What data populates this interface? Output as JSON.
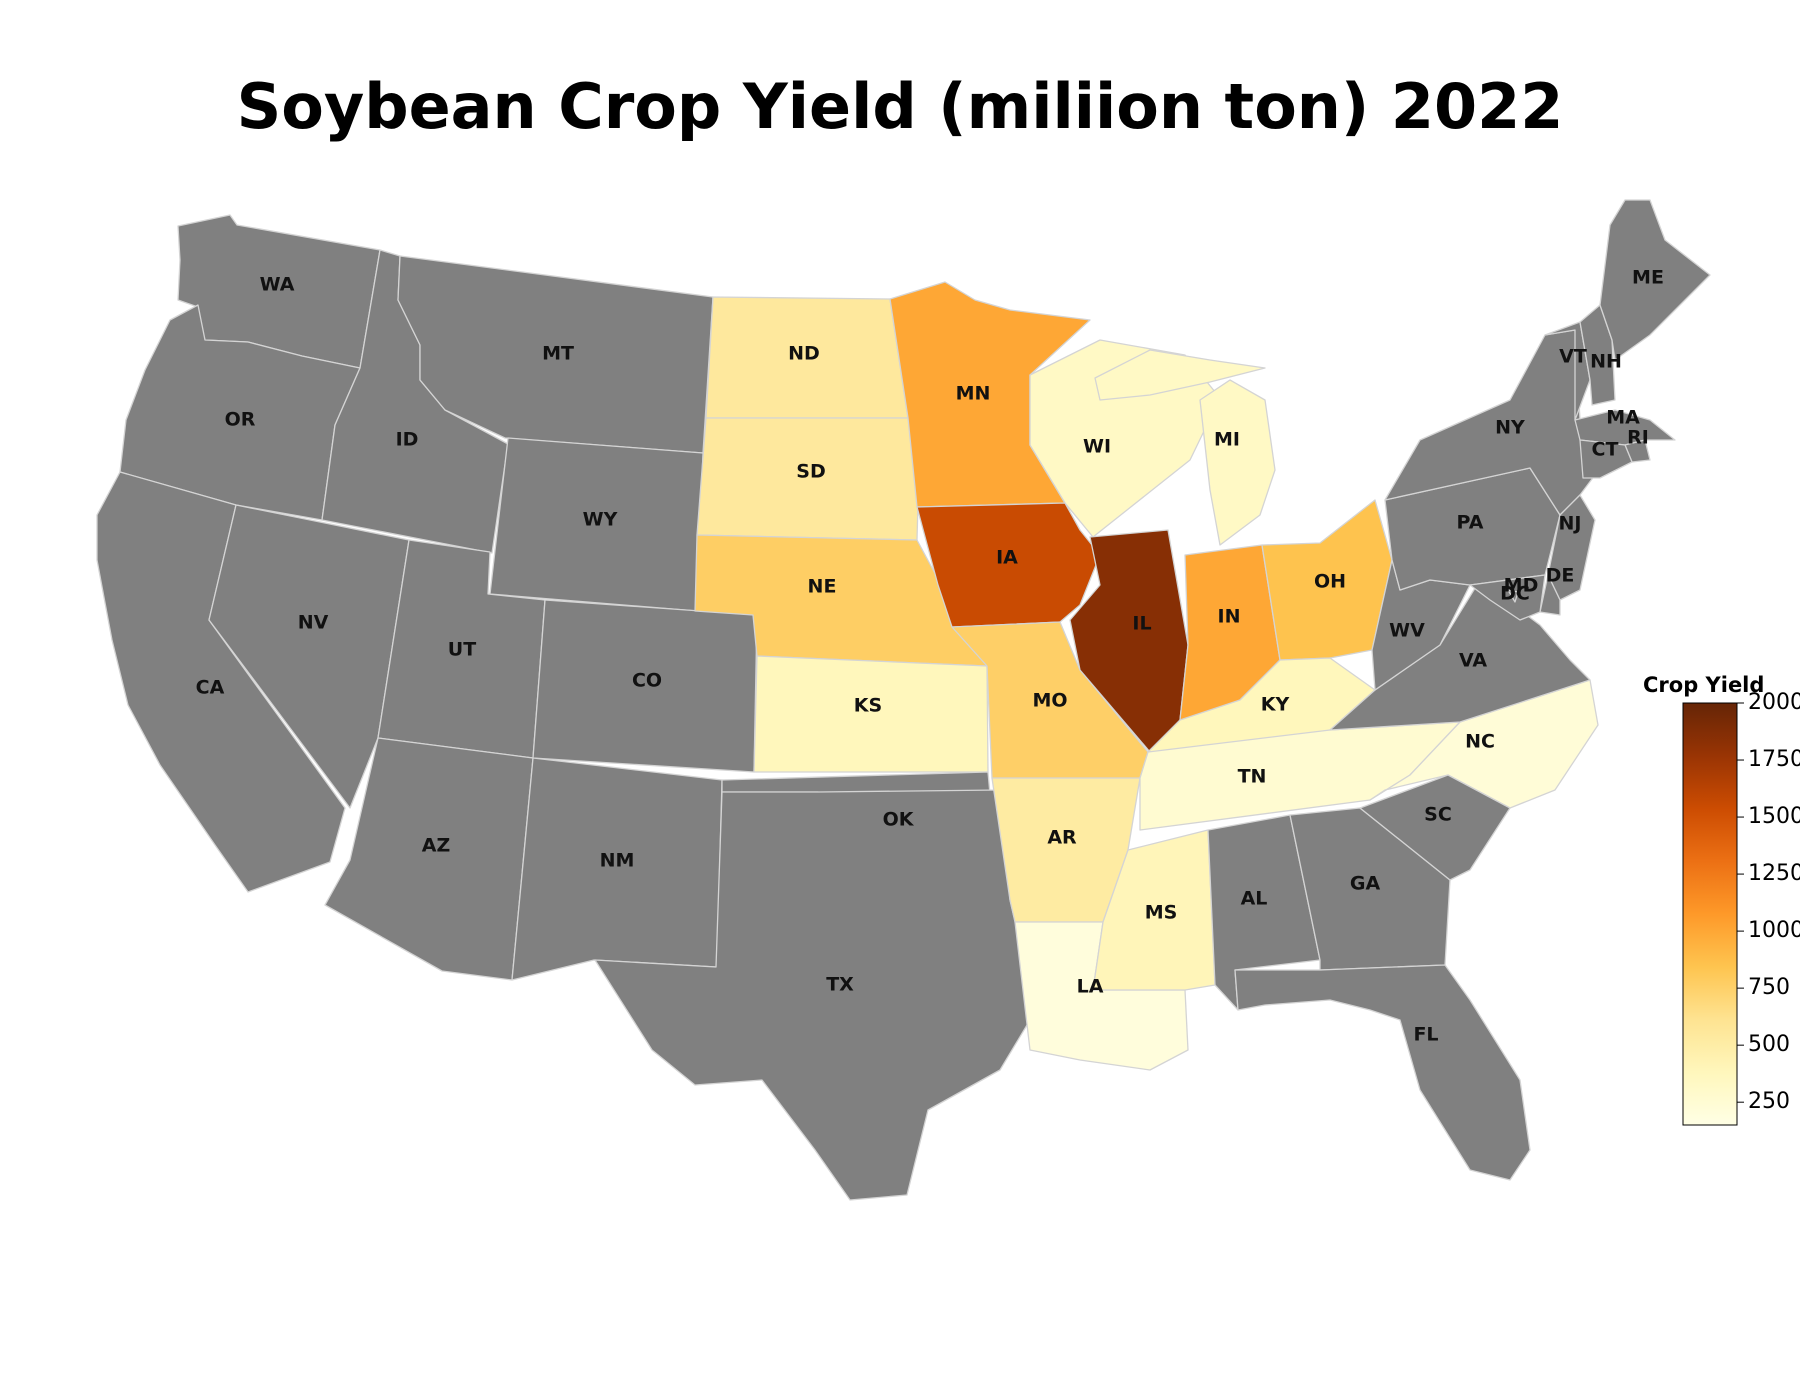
{
  "title": "Soybean Crop Yield (miliion ton) 2022",
  "no_data_color": "#808080",
  "colorbar": {
    "title": "Crop Yield",
    "min": 150,
    "max": 2000,
    "ticks": [
      "250",
      "500",
      "750",
      "1000",
      "1250",
      "1500",
      "1750",
      "2000"
    ],
    "colors": [
      "#ffffe5",
      "#fff7bc",
      "#fee391",
      "#fec44f",
      "#fe9929",
      "#ec7014",
      "#cc4c02",
      "#993404",
      "#662506"
    ]
  },
  "chart_data": {
    "type": "choropleth",
    "region": "USA",
    "value_label": "Crop Yield",
    "range": [
      150,
      2000
    ],
    "states": [
      {
        "code": "WA",
        "value": null
      },
      {
        "code": "OR",
        "value": null
      },
      {
        "code": "CA",
        "value": null
      },
      {
        "code": "ID",
        "value": null
      },
      {
        "code": "NV",
        "value": null
      },
      {
        "code": "MT",
        "value": null
      },
      {
        "code": "WY",
        "value": null
      },
      {
        "code": "UT",
        "value": null
      },
      {
        "code": "AZ",
        "value": null
      },
      {
        "code": "CO",
        "value": null
      },
      {
        "code": "NM",
        "value": null
      },
      {
        "code": "ND",
        "value": 550
      },
      {
        "code": "SD",
        "value": 550
      },
      {
        "code": "NE",
        "value": 770
      },
      {
        "code": "KS",
        "value": 380
      },
      {
        "code": "MN",
        "value": 1000
      },
      {
        "code": "OK",
        "value": null
      },
      {
        "code": "TX",
        "value": null
      },
      {
        "code": "IA",
        "value": 1550
      },
      {
        "code": "MO",
        "value": 760
      },
      {
        "code": "AR",
        "value": 520
      },
      {
        "code": "LA",
        "value": 200
      },
      {
        "code": "WI",
        "value": 330
      },
      {
        "code": "IL",
        "value": 1850
      },
      {
        "code": "MI",
        "value": 330
      },
      {
        "code": "IN",
        "value": 1000
      },
      {
        "code": "OH",
        "value": 850
      },
      {
        "code": "KY",
        "value": 380
      },
      {
        "code": "TN",
        "value": 260
      },
      {
        "code": "MS",
        "value": 400
      },
      {
        "code": "NC",
        "value": 230
      },
      {
        "code": "AL",
        "value": null
      },
      {
        "code": "GA",
        "value": null
      },
      {
        "code": "FL",
        "value": null
      },
      {
        "code": "SC",
        "value": null
      },
      {
        "code": "VA",
        "value": null
      },
      {
        "code": "WV",
        "value": null
      },
      {
        "code": "PA",
        "value": null
      },
      {
        "code": "NY",
        "value": null
      },
      {
        "code": "VT",
        "value": null
      },
      {
        "code": "NH",
        "value": null
      },
      {
        "code": "ME",
        "value": null
      },
      {
        "code": "MA",
        "value": null
      },
      {
        "code": "RI",
        "value": null
      },
      {
        "code": "CT",
        "value": null
      },
      {
        "code": "NJ",
        "value": null
      },
      {
        "code": "DE",
        "value": null
      },
      {
        "code": "MD",
        "value": null
      },
      {
        "code": "DC",
        "value": null
      }
    ]
  }
}
